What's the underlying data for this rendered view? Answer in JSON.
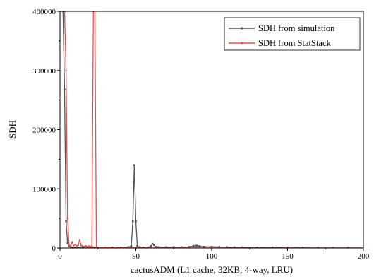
{
  "chart_data": {
    "type": "line",
    "title": "",
    "xlabel": "cactusADM (L1 cache, 32KB, 4-way, LRU)",
    "ylabel": "SDH",
    "xlim": [
      0,
      200
    ],
    "ylim": [
      0,
      400000
    ],
    "x_ticks": [
      0,
      50,
      100,
      150,
      200
    ],
    "y_ticks": [
      0,
      100000,
      200000,
      300000,
      400000
    ],
    "x_tick_labels": [
      "0",
      "50",
      "100",
      "150",
      "200"
    ],
    "y_tick_labels": [
      "0",
      "100000",
      "200000",
      "300000",
      "400000"
    ],
    "grid": false,
    "legend_position": "top-right",
    "series": [
      {
        "name": "SDH from simulation",
        "color": "#555555",
        "marker": "square",
        "x": [
          2,
          3,
          4,
          5,
          6,
          7,
          8,
          10,
          12,
          15,
          18,
          20,
          22,
          25,
          28,
          30,
          35,
          40,
          45,
          47,
          48,
          49,
          50,
          51,
          52,
          53,
          55,
          58,
          60,
          61,
          62,
          63,
          65,
          70,
          75,
          80,
          85,
          88,
          90,
          92,
          95,
          100,
          105,
          110,
          115,
          120,
          130,
          140,
          150,
          160,
          170,
          180,
          190,
          200
        ],
        "y": [
          400000,
          268000,
          45000,
          8000,
          3000,
          1500,
          1000,
          500,
          400,
          300,
          300,
          300,
          300,
          300,
          300,
          500,
          700,
          800,
          1500,
          3000,
          45000,
          140000,
          45000,
          3000,
          1500,
          1000,
          800,
          1000,
          3000,
          7000,
          5000,
          2000,
          1500,
          1500,
          1500,
          1500,
          1800,
          3500,
          4000,
          3000,
          2000,
          2000,
          1800,
          1500,
          1200,
          1000,
          800,
          500,
          300,
          200,
          100,
          100,
          100,
          100
        ]
      },
      {
        "name": "SDH from StatStack",
        "color": "#e8504f",
        "marker": "dot",
        "x": [
          2,
          3,
          4,
          5,
          6,
          7,
          8,
          9,
          10,
          11,
          12,
          13,
          14,
          15,
          16,
          17,
          18,
          19,
          20,
          21,
          22,
          23,
          24,
          25,
          30,
          40,
          50,
          60,
          80,
          100,
          120,
          150,
          200
        ],
        "y": [
          400000,
          400000,
          300000,
          50000,
          5000,
          3000,
          10000,
          4000,
          6000,
          3000,
          5000,
          14000,
          4000,
          3000,
          2500,
          3500,
          2000,
          3000,
          2000,
          3000,
          400000,
          400000,
          1500,
          1000,
          500,
          300,
          200,
          100,
          80,
          50,
          30,
          20,
          10
        ]
      }
    ]
  }
}
